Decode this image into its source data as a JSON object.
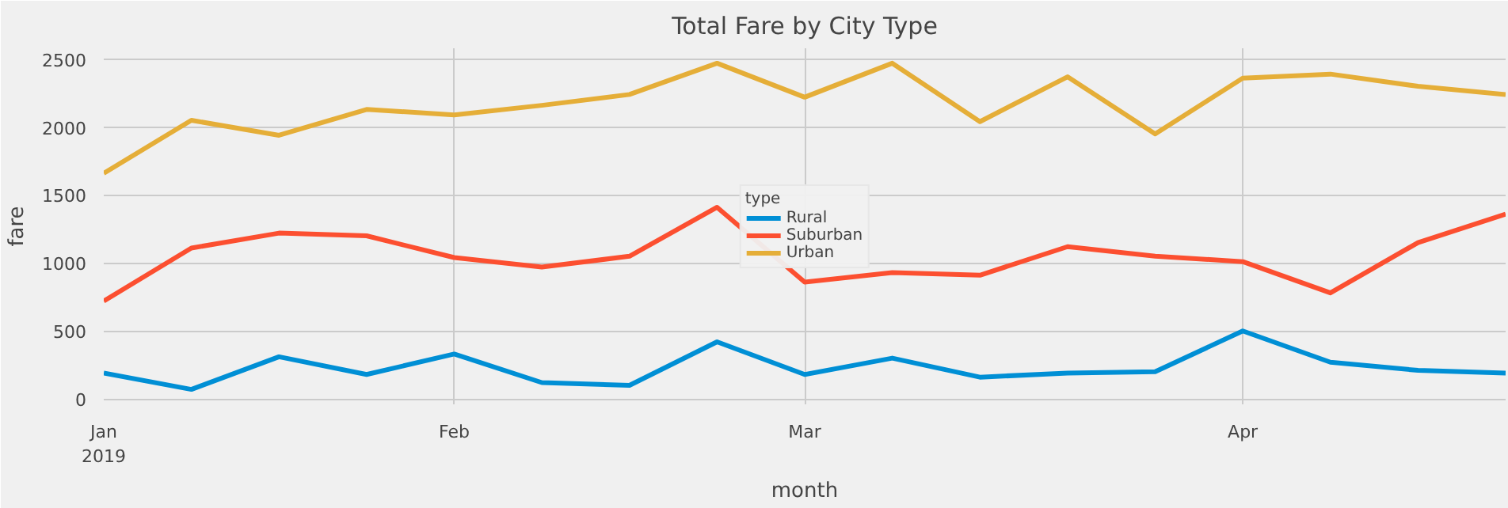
{
  "chart_data": {
    "type": "line",
    "title": "Total Fare by City Type",
    "xlabel": "month",
    "ylabel": "fare",
    "legend_title": "type",
    "x": [
      "2019-01-06",
      "2019-01-13",
      "2019-01-20",
      "2019-01-27",
      "2019-02-03",
      "2019-02-10",
      "2019-02-17",
      "2019-02-24",
      "2019-03-03",
      "2019-03-10",
      "2019-03-17",
      "2019-03-24",
      "2019-03-31",
      "2019-04-07",
      "2019-04-14",
      "2019-04-21",
      "2019-04-28"
    ],
    "series": [
      {
        "name": "Rural",
        "color": "#008fd5",
        "values": [
          190,
          70,
          310,
          180,
          330,
          120,
          100,
          420,
          180,
          300,
          160,
          190,
          200,
          500,
          270,
          210,
          190
        ]
      },
      {
        "name": "Suburban",
        "color": "#fc4f30",
        "values": [
          720,
          1110,
          1220,
          1200,
          1040,
          970,
          1050,
          1410,
          860,
          930,
          910,
          1120,
          1050,
          1010,
          780,
          1150,
          1360
        ]
      },
      {
        "name": "Urban",
        "color": "#e5ae38",
        "values": [
          1660,
          2050,
          1940,
          2130,
          2090,
          2160,
          2240,
          2470,
          2220,
          2470,
          2040,
          2370,
          1950,
          2360,
          2390,
          2300,
          2240
        ]
      }
    ],
    "xlim": [
      "2019-01-06",
      "2019-04-28"
    ],
    "ylim": [
      -40,
      2580
    ],
    "xticks": [
      {
        "value": "2019-01-06",
        "label": "Jan\n2019"
      },
      {
        "value": "2019-02-03",
        "label": "Feb"
      },
      {
        "value": "2019-03-03",
        "label": "Mar"
      },
      {
        "value": "2019-04-07",
        "label": "Apr"
      }
    ],
    "yticks": [
      0,
      500,
      1000,
      1500,
      2000,
      2500
    ],
    "grid": true,
    "legend": "center",
    "marker": "none",
    "line_style": "solid"
  }
}
